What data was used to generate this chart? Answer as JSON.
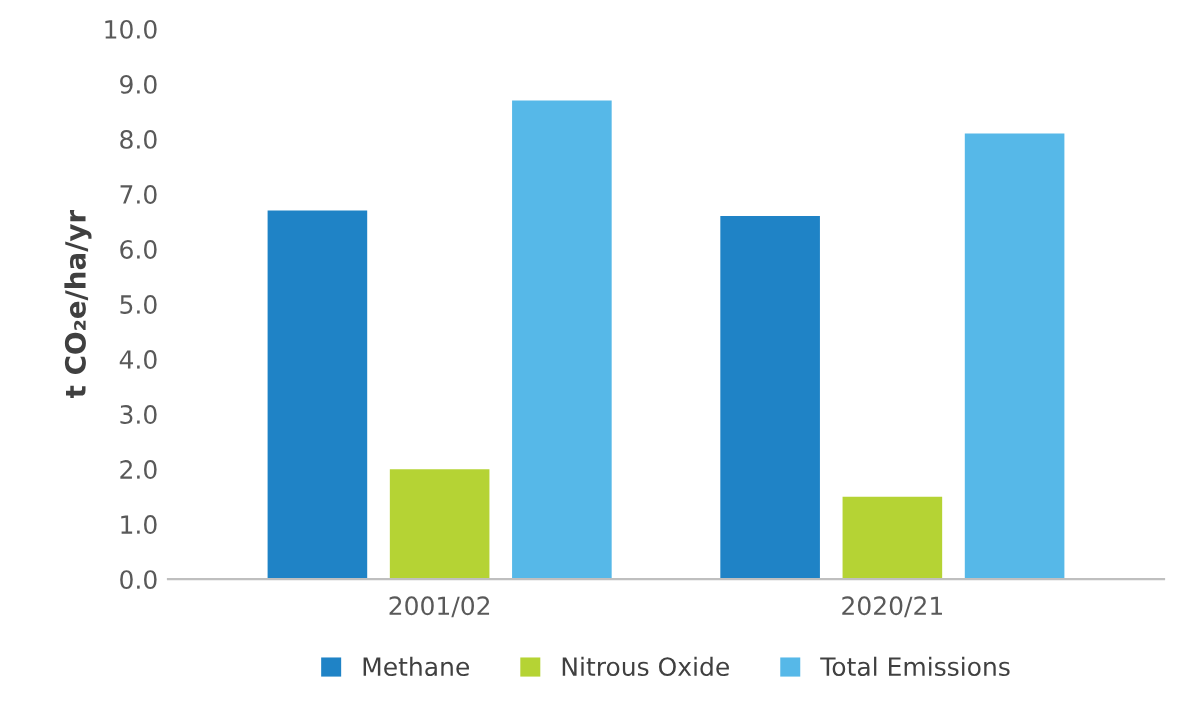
{
  "chart_data": {
    "type": "bar",
    "ylabel": "t CO₂e/ha/yr",
    "categories": [
      "2001/02",
      "2020/21"
    ],
    "series": [
      {
        "name": "Methane",
        "color": "#1f83c6",
        "values": [
          6.7,
          6.6
        ]
      },
      {
        "name": "Nitrous Oxide",
        "color": "#b5d334",
        "values": [
          2.0,
          1.5
        ]
      },
      {
        "name": "Total Emissions",
        "color": "#56b8e8",
        "values": [
          8.7,
          8.1
        ]
      }
    ],
    "ylim": [
      0,
      10
    ],
    "yticks": [
      {
        "value": 0,
        "label": "0.0"
      },
      {
        "value": 1,
        "label": "1.0"
      },
      {
        "value": 2,
        "label": "2.0"
      },
      {
        "value": 3,
        "label": "3.0"
      },
      {
        "value": 4,
        "label": "4.0"
      },
      {
        "value": 5,
        "label": "5.0"
      },
      {
        "value": 6,
        "label": "6.0"
      },
      {
        "value": 7,
        "label": "7.0"
      },
      {
        "value": 8,
        "label": "8.0"
      },
      {
        "value": 9,
        "label": "9.0"
      },
      {
        "value": 10,
        "label": "10.0"
      }
    ],
    "grid": false,
    "legend": "bottom"
  }
}
